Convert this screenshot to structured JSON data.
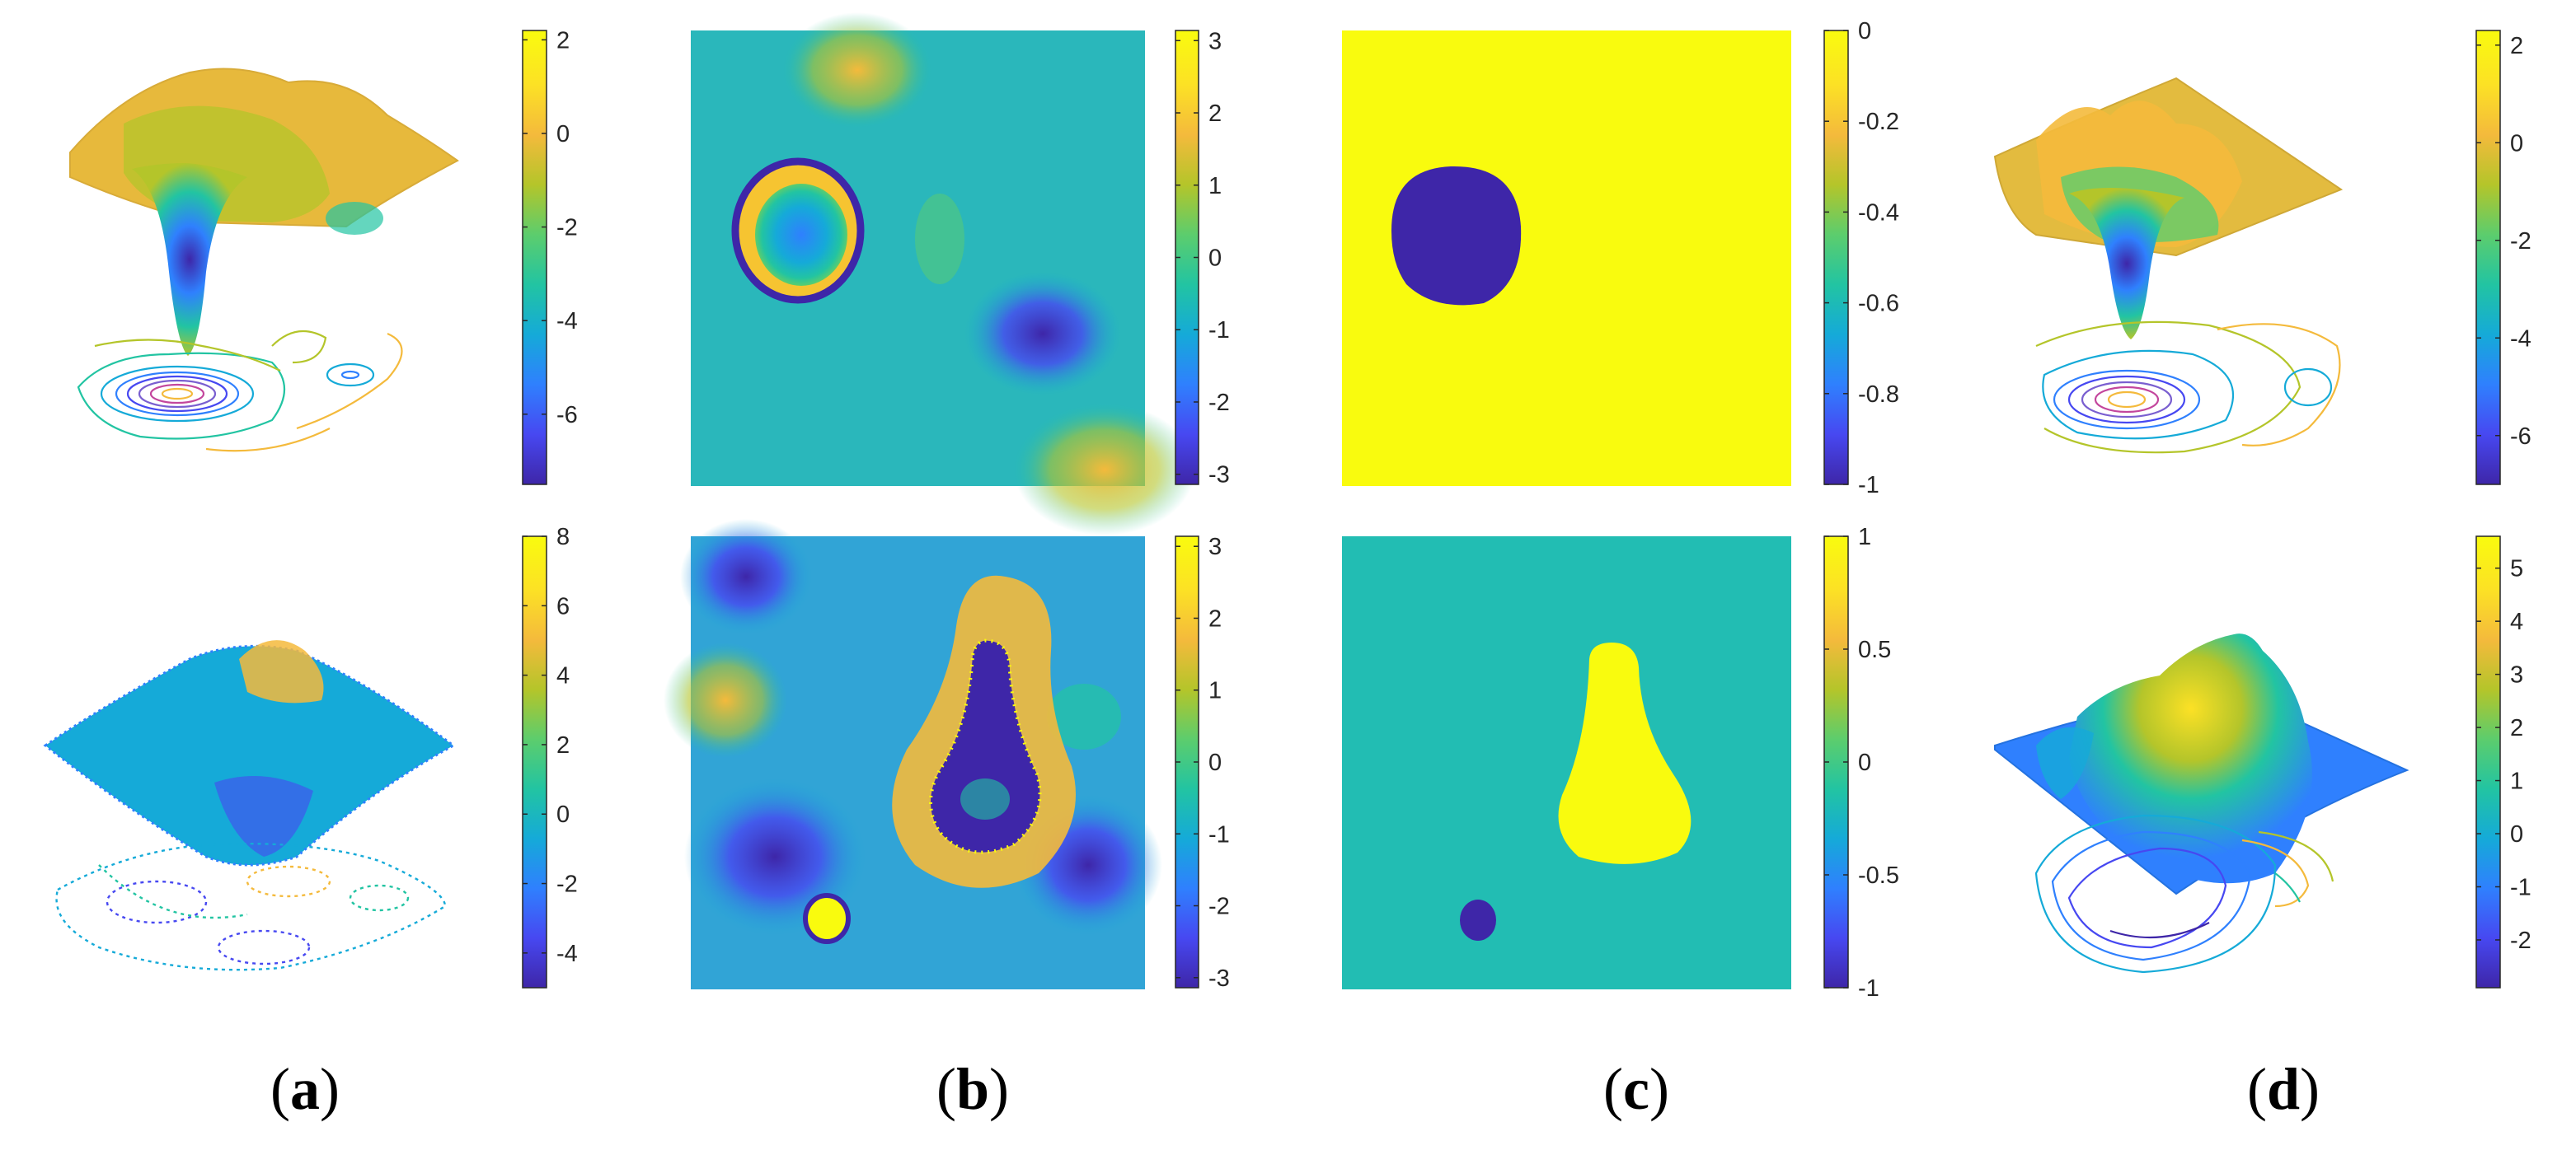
{
  "colormap": [
    "#3e26a8",
    "#4748f1",
    "#2f80fe",
    "#15aad8",
    "#22c4a2",
    "#5ccd6d",
    "#b4c52a",
    "#f4ba3c",
    "#fce125",
    "#f9fb0e"
  ],
  "colors": {
    "background": "#ffffff",
    "text": "#262626"
  },
  "panel_labels": [
    {
      "open": "(",
      "letter": "a",
      "close": ")"
    },
    {
      "open": "(",
      "letter": "b",
      "close": ")"
    },
    {
      "open": "(",
      "letter": "c",
      "close": ")"
    },
    {
      "open": "(",
      "letter": "d",
      "close": ")"
    }
  ],
  "chart_data": [
    {
      "type": "heatmap",
      "panel": "a",
      "row": 1,
      "view": "3d-surface-with-contours",
      "colorbar": {
        "min": -7.5,
        "max": 2.2,
        "ticks": [
          2,
          0,
          -2,
          -4,
          -6
        ],
        "tick_labels": [
          "2",
          "0",
          "-2",
          "-4",
          "-6"
        ]
      }
    },
    {
      "type": "heatmap",
      "panel": "b",
      "row": 1,
      "view": "2d-map",
      "colorbar": {
        "min": -3.14,
        "max": 3.14,
        "ticks": [
          3,
          2,
          1,
          0,
          -1,
          -2,
          -3
        ],
        "tick_labels": [
          "3",
          "2",
          "1",
          "0",
          "-1",
          "-2",
          "-3"
        ]
      }
    },
    {
      "type": "heatmap",
      "panel": "c",
      "row": 1,
      "view": "2d-map",
      "colorbar": {
        "min": -1,
        "max": 0,
        "ticks": [
          0,
          -0.2,
          -0.4,
          -0.6,
          -0.8,
          -1
        ],
        "tick_labels": [
          "0",
          "-0.2",
          "-0.4",
          "-0.6",
          "-0.8",
          "-1"
        ]
      }
    },
    {
      "type": "heatmap",
      "panel": "d",
      "row": 1,
      "view": "3d-surface-with-contours",
      "colorbar": {
        "min": -7,
        "max": 2.3,
        "ticks": [
          2,
          0,
          -2,
          -4,
          -6
        ],
        "tick_labels": [
          "2",
          "0",
          "-2",
          "-4",
          "-6"
        ]
      }
    },
    {
      "type": "heatmap",
      "panel": "a",
      "row": 2,
      "view": "3d-surface-with-contours",
      "colorbar": {
        "min": -5,
        "max": 8,
        "ticks": [
          8,
          6,
          4,
          2,
          0,
          -2,
          -4
        ],
        "tick_labels": [
          "8",
          "6",
          "4",
          "2",
          "0",
          "-2",
          "-4"
        ]
      }
    },
    {
      "type": "heatmap",
      "panel": "b",
      "row": 2,
      "view": "2d-map",
      "colorbar": {
        "min": -3.14,
        "max": 3.14,
        "ticks": [
          3,
          2,
          1,
          0,
          -1,
          -2,
          -3
        ],
        "tick_labels": [
          "3",
          "2",
          "1",
          "0",
          "-1",
          "-2",
          "-3"
        ]
      }
    },
    {
      "type": "heatmap",
      "panel": "c",
      "row": 2,
      "view": "2d-map",
      "colorbar": {
        "min": -1,
        "max": 1,
        "ticks": [
          1,
          0.5,
          0,
          -0.5,
          -1
        ],
        "tick_labels": [
          "1",
          "0.5",
          "0",
          "-0.5",
          "-1"
        ]
      }
    },
    {
      "type": "heatmap",
      "panel": "d",
      "row": 2,
      "view": "3d-surface-with-contours",
      "colorbar": {
        "min": -2.9,
        "max": 5.6,
        "ticks": [
          5,
          4,
          3,
          2,
          1,
          0,
          -1,
          -2
        ],
        "tick_labels": [
          "5",
          "4",
          "3",
          "2",
          "1",
          "0",
          "-1",
          "-2"
        ]
      }
    }
  ]
}
